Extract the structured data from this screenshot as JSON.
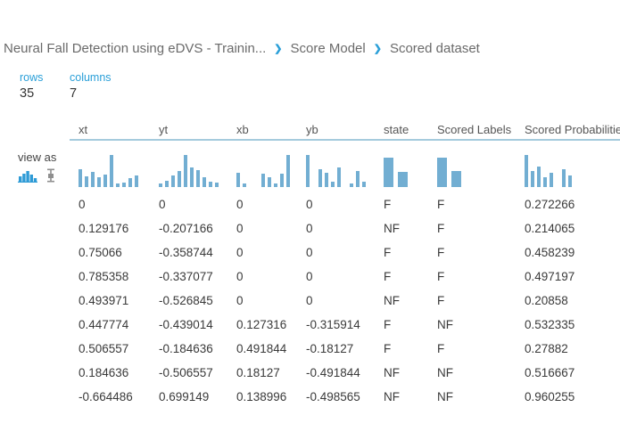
{
  "breadcrumb": {
    "separator": "❯",
    "items": [
      {
        "label": "Neural Fall Detection using eDVS - Trainin..."
      },
      {
        "label": "Score Model"
      },
      {
        "label": "Scored dataset"
      }
    ]
  },
  "stats": {
    "rows_label": "rows",
    "rows_value": "35",
    "columns_label": "columns",
    "columns_value": "7"
  },
  "view_as": {
    "label": "view as",
    "icons": [
      {
        "name": "histogram-view-icon",
        "active": true
      },
      {
        "name": "boxplot-view-icon",
        "active": false
      }
    ]
  },
  "colors": {
    "accent_blue": "#2a9fd8",
    "bar_blue": "#72aed2",
    "header_underline": "#a5cbdd",
    "text_dark": "#3a3a3a",
    "text_gray": "#6a6a6a"
  },
  "table": {
    "columns": [
      {
        "label": "xt",
        "wide": false,
        "histogram": [
          0.55,
          0.32,
          0.48,
          0.3,
          0.38,
          1.0,
          0.12,
          0.14,
          0.28,
          0.36
        ]
      },
      {
        "label": "yt",
        "wide": false,
        "histogram": [
          0.12,
          0.2,
          0.36,
          0.5,
          1.0,
          0.62,
          0.52,
          0.3,
          0.16,
          0.14
        ]
      },
      {
        "label": "xb",
        "wide": false,
        "histogram": [
          0.45,
          0.12,
          0,
          0,
          0.42,
          0.3,
          0.1,
          0.42,
          1.0
        ]
      },
      {
        "label": "yb",
        "wide": false,
        "histogram": [
          1.0,
          0,
          0.55,
          0.45,
          0.18,
          0.62,
          0,
          0.12,
          0.5,
          0.18
        ]
      },
      {
        "label": "state",
        "wide": true,
        "histogram": [
          1.0,
          0.52
        ]
      },
      {
        "label": "Scored Labels",
        "wide": true,
        "histogram": [
          1.0,
          0.55
        ]
      },
      {
        "label": "Scored Probabilities",
        "wide": false,
        "histogram": [
          1.0,
          0.5,
          0.65,
          0.3,
          0.45,
          0,
          0.55,
          0.35
        ]
      }
    ],
    "rows": [
      [
        "0",
        "0",
        "0",
        "0",
        "F",
        "F",
        "0.272266"
      ],
      [
        "0.129176",
        "-0.207166",
        "0",
        "0",
        "NF",
        "F",
        "0.214065"
      ],
      [
        "0.75066",
        "-0.358744",
        "0",
        "0",
        "F",
        "F",
        "0.458239"
      ],
      [
        "0.785358",
        "-0.337077",
        "0",
        "0",
        "F",
        "F",
        "0.497197"
      ],
      [
        "0.493971",
        "-0.526845",
        "0",
        "0",
        "NF",
        "F",
        "0.20858"
      ],
      [
        "0.447774",
        "-0.439014",
        "0.127316",
        "-0.315914",
        "F",
        "NF",
        "0.532335"
      ],
      [
        "0.506557",
        "-0.184636",
        "0.491844",
        "-0.18127",
        "F",
        "F",
        "0.27882"
      ],
      [
        "0.184636",
        "-0.506557",
        "0.18127",
        "-0.491844",
        "NF",
        "NF",
        "0.516667"
      ],
      [
        "-0.664486",
        "0.699149",
        "0.138996",
        "-0.498565",
        "NF",
        "NF",
        "0.960255"
      ]
    ]
  }
}
